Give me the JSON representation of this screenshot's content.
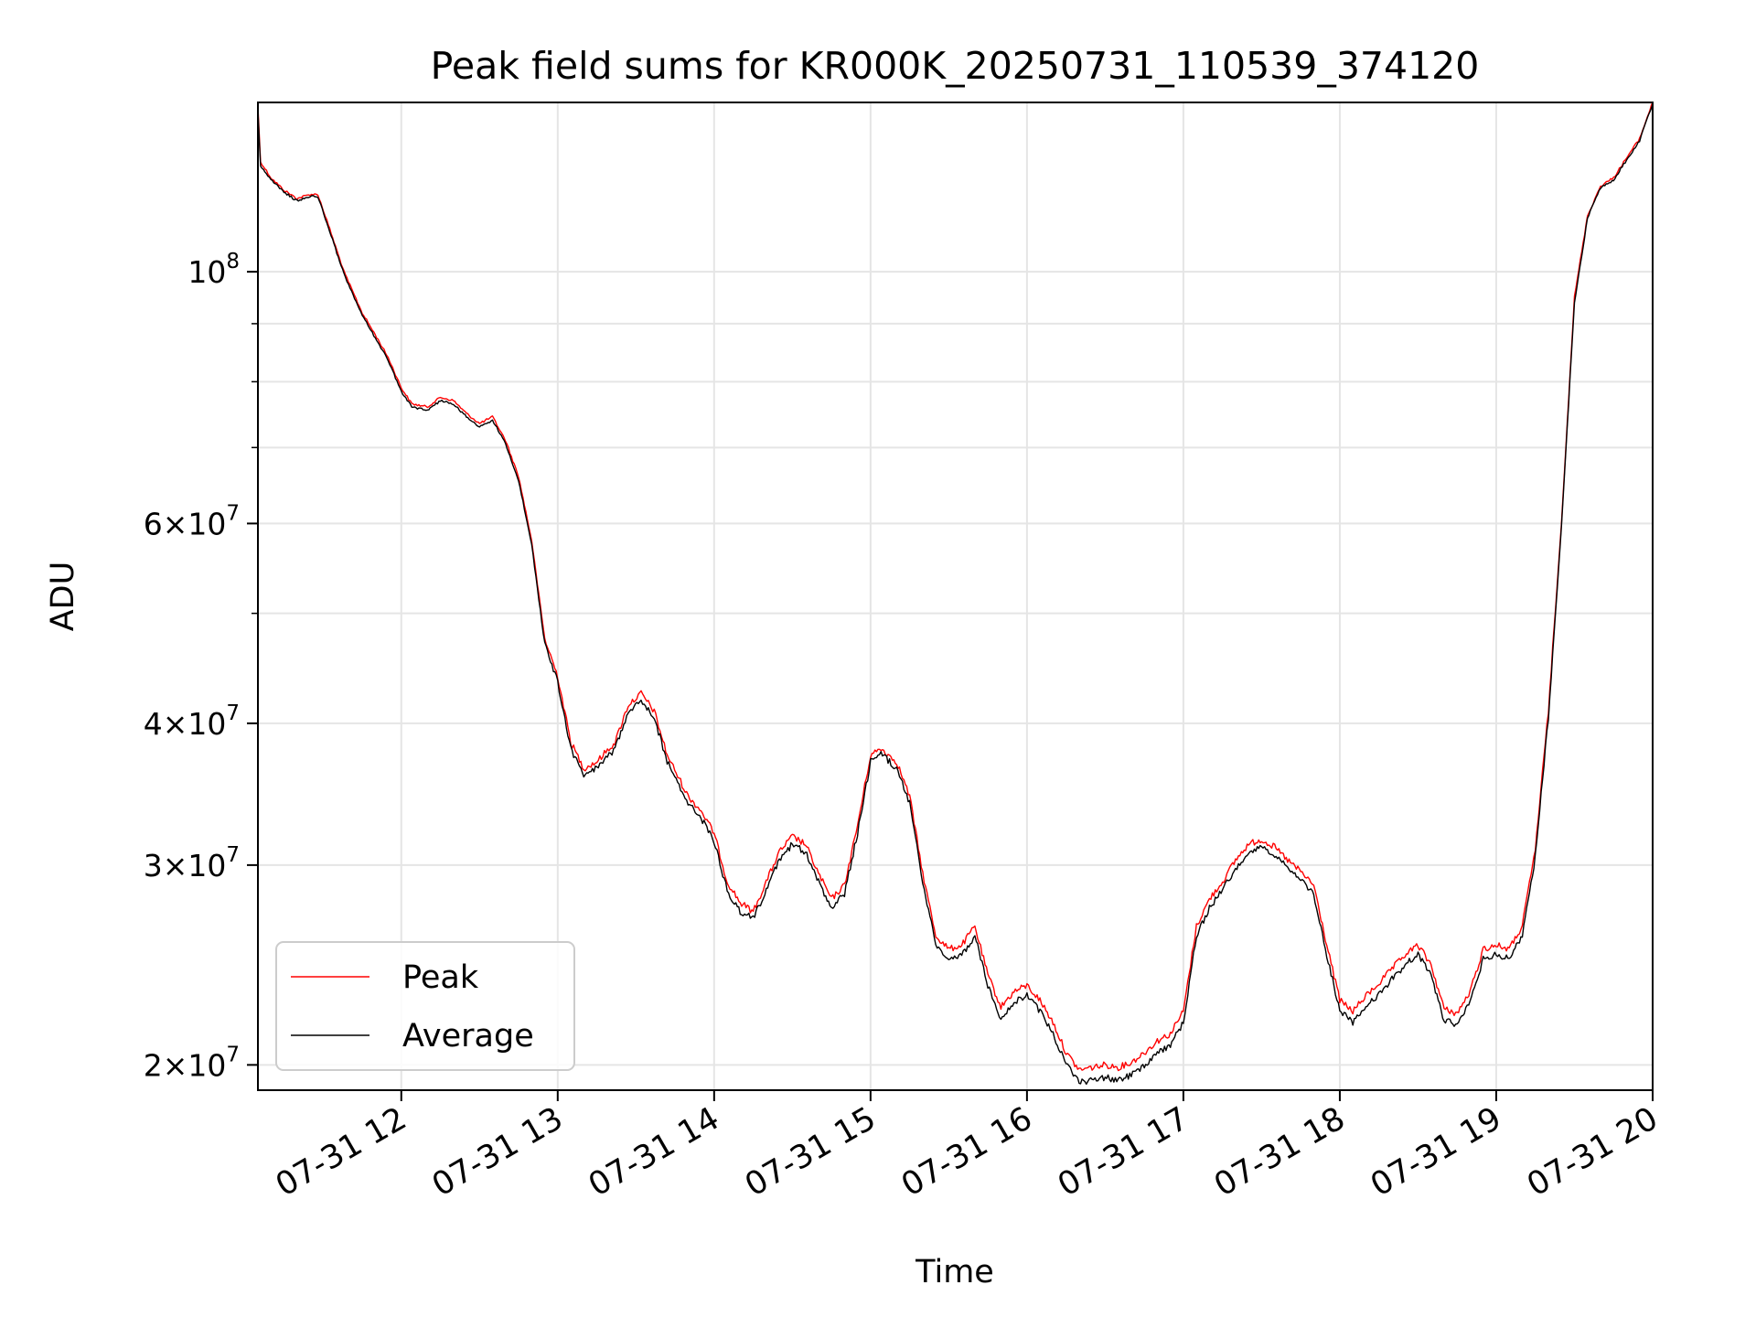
{
  "chart_data": {
    "type": "line",
    "title": "Peak field sums for KR000K_20250731_110539_374120",
    "xlabel": "Time",
    "ylabel": "ADU",
    "yscale": "log",
    "grid": true,
    "legend_position": "lower-left",
    "xlim": [
      "2025-07-31 11:05",
      "2025-07-31 20:00"
    ],
    "ylim": [
      19000000,
      141000000
    ],
    "x_ticks": [
      {
        "value": "2025-07-31 12:00",
        "label": "07-31 12"
      },
      {
        "value": "2025-07-31 13:00",
        "label": "07-31 13"
      },
      {
        "value": "2025-07-31 14:00",
        "label": "07-31 14"
      },
      {
        "value": "2025-07-31 15:00",
        "label": "07-31 15"
      },
      {
        "value": "2025-07-31 16:00",
        "label": "07-31 16"
      },
      {
        "value": "2025-07-31 17:00",
        "label": "07-31 17"
      },
      {
        "value": "2025-07-31 18:00",
        "label": "07-31 18"
      },
      {
        "value": "2025-07-31 19:00",
        "label": "07-31 19"
      },
      {
        "value": "2025-07-31 20:00",
        "label": "07-31 20"
      }
    ],
    "y_ticks": [
      {
        "value": 100000000,
        "base": "10",
        "exp": "8",
        "mantissa": ""
      },
      {
        "value": 60000000,
        "base": "10",
        "exp": "7",
        "mantissa": "6"
      },
      {
        "value": 40000000,
        "base": "10",
        "exp": "7",
        "mantissa": "4"
      },
      {
        "value": 30000000,
        "base": "10",
        "exp": "7",
        "mantissa": "3"
      },
      {
        "value": 20000000,
        "base": "10",
        "exp": "7",
        "mantissa": "2"
      }
    ],
    "y_minor_ticks": [
      90000000,
      80000000,
      70000000,
      50000000
    ],
    "series": [
      {
        "name": "Peak",
        "color": "#ff0000",
        "points": [
          [
            "2025-07-31 11:05",
            140000000
          ],
          [
            "2025-07-31 11:06",
            125000000
          ],
          [
            "2025-07-31 11:10",
            121000000
          ],
          [
            "2025-07-31 11:15",
            118000000
          ],
          [
            "2025-07-31 11:20",
            116000000
          ],
          [
            "2025-07-31 11:25",
            117000000
          ],
          [
            "2025-07-31 11:28",
            117000000
          ],
          [
            "2025-07-31 11:32",
            110000000
          ],
          [
            "2025-07-31 11:38",
            100000000
          ],
          [
            "2025-07-31 11:45",
            92000000
          ],
          [
            "2025-07-31 11:50",
            88000000
          ],
          [
            "2025-07-31 11:55",
            84000000
          ],
          [
            "2025-07-31 12:00",
            79000000
          ],
          [
            "2025-07-31 12:04",
            76500000
          ],
          [
            "2025-07-31 12:10",
            76000000
          ],
          [
            "2025-07-31 12:15",
            77500000
          ],
          [
            "2025-07-31 12:20",
            77000000
          ],
          [
            "2025-07-31 12:25",
            75000000
          ],
          [
            "2025-07-31 12:30",
            73500000
          ],
          [
            "2025-07-31 12:35",
            74500000
          ],
          [
            "2025-07-31 12:40",
            71000000
          ],
          [
            "2025-07-31 12:45",
            66000000
          ],
          [
            "2025-07-31 12:50",
            58000000
          ],
          [
            "2025-07-31 12:55",
            47500000
          ],
          [
            "2025-07-31 13:00",
            44000000
          ],
          [
            "2025-07-31 13:05",
            38500000
          ],
          [
            "2025-07-31 13:10",
            36500000
          ],
          [
            "2025-07-31 13:15",
            37000000
          ],
          [
            "2025-07-31 13:22",
            38500000
          ],
          [
            "2025-07-31 13:27",
            41500000
          ],
          [
            "2025-07-31 13:32",
            42500000
          ],
          [
            "2025-07-31 13:37",
            41000000
          ],
          [
            "2025-07-31 13:42",
            37500000
          ],
          [
            "2025-07-31 13:50",
            34500000
          ],
          [
            "2025-07-31 13:55",
            33500000
          ],
          [
            "2025-07-31 14:00",
            32000000
          ],
          [
            "2025-07-31 14:05",
            29000000
          ],
          [
            "2025-07-31 14:10",
            27800000
          ],
          [
            "2025-07-31 14:15",
            27300000
          ],
          [
            "2025-07-31 14:20",
            29000000
          ],
          [
            "2025-07-31 14:25",
            30800000
          ],
          [
            "2025-07-31 14:30",
            31800000
          ],
          [
            "2025-07-31 14:35",
            31300000
          ],
          [
            "2025-07-31 14:40",
            29500000
          ],
          [
            "2025-07-31 14:45",
            28000000
          ],
          [
            "2025-07-31 14:50",
            28800000
          ],
          [
            "2025-07-31 14:55",
            32500000
          ],
          [
            "2025-07-31 15:00",
            37500000
          ],
          [
            "2025-07-31 15:04",
            38000000
          ],
          [
            "2025-07-31 15:10",
            37000000
          ],
          [
            "2025-07-31 15:15",
            34500000
          ],
          [
            "2025-07-31 15:20",
            29500000
          ],
          [
            "2025-07-31 15:25",
            26000000
          ],
          [
            "2025-07-31 15:30",
            25300000
          ],
          [
            "2025-07-31 15:35",
            25500000
          ],
          [
            "2025-07-31 15:40",
            26500000
          ],
          [
            "2025-07-31 15:45",
            24000000
          ],
          [
            "2025-07-31 15:50",
            22500000
          ],
          [
            "2025-07-31 15:55",
            23200000
          ],
          [
            "2025-07-31 16:00",
            23500000
          ],
          [
            "2025-07-31 16:05",
            22800000
          ],
          [
            "2025-07-31 16:10",
            21800000
          ],
          [
            "2025-07-31 16:15",
            20500000
          ],
          [
            "2025-07-31 16:20",
            19800000
          ],
          [
            "2025-07-31 16:25",
            19900000
          ],
          [
            "2025-07-31 16:30",
            20000000
          ],
          [
            "2025-07-31 16:35",
            19900000
          ],
          [
            "2025-07-31 16:40",
            20100000
          ],
          [
            "2025-07-31 16:45",
            20500000
          ],
          [
            "2025-07-31 16:50",
            21000000
          ],
          [
            "2025-07-31 16:55",
            21300000
          ],
          [
            "2025-07-31 17:00",
            22300000
          ],
          [
            "2025-07-31 17:05",
            26500000
          ],
          [
            "2025-07-31 17:10",
            28000000
          ],
          [
            "2025-07-31 17:15",
            29000000
          ],
          [
            "2025-07-31 17:20",
            30300000
          ],
          [
            "2025-07-31 17:25",
            31300000
          ],
          [
            "2025-07-31 17:30",
            31600000
          ],
          [
            "2025-07-31 17:35",
            31100000
          ],
          [
            "2025-07-31 17:40",
            30300000
          ],
          [
            "2025-07-31 17:45",
            29600000
          ],
          [
            "2025-07-31 17:50",
            28800000
          ],
          [
            "2025-07-31 17:55",
            25500000
          ],
          [
            "2025-07-31 18:00",
            22800000
          ],
          [
            "2025-07-31 18:05",
            22300000
          ],
          [
            "2025-07-31 18:10",
            23000000
          ],
          [
            "2025-07-31 18:15",
            23600000
          ],
          [
            "2025-07-31 18:20",
            24300000
          ],
          [
            "2025-07-31 18:25",
            25000000
          ],
          [
            "2025-07-31 18:30",
            25500000
          ],
          [
            "2025-07-31 18:35",
            24500000
          ],
          [
            "2025-07-31 18:40",
            22400000
          ],
          [
            "2025-07-31 18:45",
            22200000
          ],
          [
            "2025-07-31 18:50",
            23200000
          ],
          [
            "2025-07-31 18:55",
            25300000
          ],
          [
            "2025-07-31 19:00",
            25500000
          ],
          [
            "2025-07-31 19:05",
            25300000
          ],
          [
            "2025-07-31 19:10",
            26500000
          ],
          [
            "2025-07-31 19:15",
            31000000
          ],
          [
            "2025-07-31 19:20",
            41000000
          ],
          [
            "2025-07-31 19:25",
            60000000
          ],
          [
            "2025-07-31 19:30",
            95000000
          ],
          [
            "2025-07-31 19:35",
            112000000
          ],
          [
            "2025-07-31 19:40",
            119000000
          ],
          [
            "2025-07-31 19:45",
            121000000
          ],
          [
            "2025-07-31 19:50",
            126000000
          ],
          [
            "2025-07-31 19:55",
            131000000
          ],
          [
            "2025-07-31 19:58",
            137000000
          ],
          [
            "2025-07-31 20:00",
            141000000
          ]
        ]
      },
      {
        "name": "Average",
        "color": "#000000",
        "points": [
          [
            "2025-07-31 11:05",
            139000000
          ],
          [
            "2025-07-31 11:06",
            124000000
          ],
          [
            "2025-07-31 11:10",
            120500000
          ],
          [
            "2025-07-31 11:15",
            117500000
          ],
          [
            "2025-07-31 11:20",
            115500000
          ],
          [
            "2025-07-31 11:25",
            116500000
          ],
          [
            "2025-07-31 11:28",
            116500000
          ],
          [
            "2025-07-31 11:32",
            109500000
          ],
          [
            "2025-07-31 11:38",
            99500000
          ],
          [
            "2025-07-31 11:45",
            91500000
          ],
          [
            "2025-07-31 11:50",
            87500000
          ],
          [
            "2025-07-31 11:55",
            83500000
          ],
          [
            "2025-07-31 12:00",
            78500000
          ],
          [
            "2025-07-31 12:04",
            76000000
          ],
          [
            "2025-07-31 12:10",
            75500000
          ],
          [
            "2025-07-31 12:15",
            77000000
          ],
          [
            "2025-07-31 12:20",
            76500000
          ],
          [
            "2025-07-31 12:25",
            74500000
          ],
          [
            "2025-07-31 12:30",
            73000000
          ],
          [
            "2025-07-31 12:35",
            74000000
          ],
          [
            "2025-07-31 12:40",
            70500000
          ],
          [
            "2025-07-31 12:45",
            65500000
          ],
          [
            "2025-07-31 12:50",
            57500000
          ],
          [
            "2025-07-31 12:55",
            47000000
          ],
          [
            "2025-07-31 13:00",
            43500000
          ],
          [
            "2025-07-31 13:05",
            38000000
          ],
          [
            "2025-07-31 13:10",
            36000000
          ],
          [
            "2025-07-31 13:15",
            36500000
          ],
          [
            "2025-07-31 13:22",
            38000000
          ],
          [
            "2025-07-31 13:27",
            41000000
          ],
          [
            "2025-07-31 13:32",
            42000000
          ],
          [
            "2025-07-31 13:37",
            40500000
          ],
          [
            "2025-07-31 13:42",
            37000000
          ],
          [
            "2025-07-31 13:50",
            34000000
          ],
          [
            "2025-07-31 13:55",
            33000000
          ],
          [
            "2025-07-31 14:00",
            31500000
          ],
          [
            "2025-07-31 14:05",
            28500000
          ],
          [
            "2025-07-31 14:10",
            27300000
          ],
          [
            "2025-07-31 14:15",
            26900000
          ],
          [
            "2025-07-31 14:20",
            28500000
          ],
          [
            "2025-07-31 14:25",
            30300000
          ],
          [
            "2025-07-31 14:30",
            31300000
          ],
          [
            "2025-07-31 14:35",
            30800000
          ],
          [
            "2025-07-31 14:40",
            29000000
          ],
          [
            "2025-07-31 14:45",
            27500000
          ],
          [
            "2025-07-31 14:50",
            28300000
          ],
          [
            "2025-07-31 14:55",
            32000000
          ],
          [
            "2025-07-31 15:00",
            37000000
          ],
          [
            "2025-07-31 15:04",
            37600000
          ],
          [
            "2025-07-31 15:10",
            36500000
          ],
          [
            "2025-07-31 15:15",
            34000000
          ],
          [
            "2025-07-31 15:20",
            29000000
          ],
          [
            "2025-07-31 15:25",
            25500000
          ],
          [
            "2025-07-31 15:30",
            24800000
          ],
          [
            "2025-07-31 15:35",
            25000000
          ],
          [
            "2025-07-31 15:40",
            26000000
          ],
          [
            "2025-07-31 15:45",
            23500000
          ],
          [
            "2025-07-31 15:50",
            22000000
          ],
          [
            "2025-07-31 15:55",
            22700000
          ],
          [
            "2025-07-31 16:00",
            23000000
          ],
          [
            "2025-07-31 16:05",
            22300000
          ],
          [
            "2025-07-31 16:10",
            21300000
          ],
          [
            "2025-07-31 16:15",
            20000000
          ],
          [
            "2025-07-31 16:20",
            19300000
          ],
          [
            "2025-07-31 16:25",
            19400000
          ],
          [
            "2025-07-31 16:30",
            19500000
          ],
          [
            "2025-07-31 16:35",
            19400000
          ],
          [
            "2025-07-31 16:40",
            19600000
          ],
          [
            "2025-07-31 16:45",
            20000000
          ],
          [
            "2025-07-31 16:50",
            20500000
          ],
          [
            "2025-07-31 16:55",
            20800000
          ],
          [
            "2025-07-31 17:00",
            21800000
          ],
          [
            "2025-07-31 17:05",
            26000000
          ],
          [
            "2025-07-31 17:10",
            27500000
          ],
          [
            "2025-07-31 17:15",
            28500000
          ],
          [
            "2025-07-31 17:20",
            29800000
          ],
          [
            "2025-07-31 17:25",
            30800000
          ],
          [
            "2025-07-31 17:30",
            31100000
          ],
          [
            "2025-07-31 17:35",
            30600000
          ],
          [
            "2025-07-31 17:40",
            29800000
          ],
          [
            "2025-07-31 17:45",
            29100000
          ],
          [
            "2025-07-31 17:50",
            28300000
          ],
          [
            "2025-07-31 17:55",
            25000000
          ],
          [
            "2025-07-31 18:00",
            22300000
          ],
          [
            "2025-07-31 18:05",
            21800000
          ],
          [
            "2025-07-31 18:10",
            22500000
          ],
          [
            "2025-07-31 18:15",
            23100000
          ],
          [
            "2025-07-31 18:20",
            23800000
          ],
          [
            "2025-07-31 18:25",
            24500000
          ],
          [
            "2025-07-31 18:30",
            25000000
          ],
          [
            "2025-07-31 18:35",
            24000000
          ],
          [
            "2025-07-31 18:40",
            21900000
          ],
          [
            "2025-07-31 18:45",
            21700000
          ],
          [
            "2025-07-31 18:50",
            22700000
          ],
          [
            "2025-07-31 18:55",
            24800000
          ],
          [
            "2025-07-31 19:00",
            25000000
          ],
          [
            "2025-07-31 19:05",
            24800000
          ],
          [
            "2025-07-31 19:10",
            26000000
          ],
          [
            "2025-07-31 19:15",
            30500000
          ],
          [
            "2025-07-31 19:20",
            40500000
          ],
          [
            "2025-07-31 19:25",
            59500000
          ],
          [
            "2025-07-31 19:30",
            94000000
          ],
          [
            "2025-07-31 19:35",
            111500000
          ],
          [
            "2025-07-31 19:40",
            118500000
          ],
          [
            "2025-07-31 19:45",
            120500000
          ],
          [
            "2025-07-31 19:50",
            125500000
          ],
          [
            "2025-07-31 19:55",
            130500000
          ],
          [
            "2025-07-31 19:58",
            136500000
          ],
          [
            "2025-07-31 20:00",
            140500000
          ]
        ]
      }
    ]
  }
}
